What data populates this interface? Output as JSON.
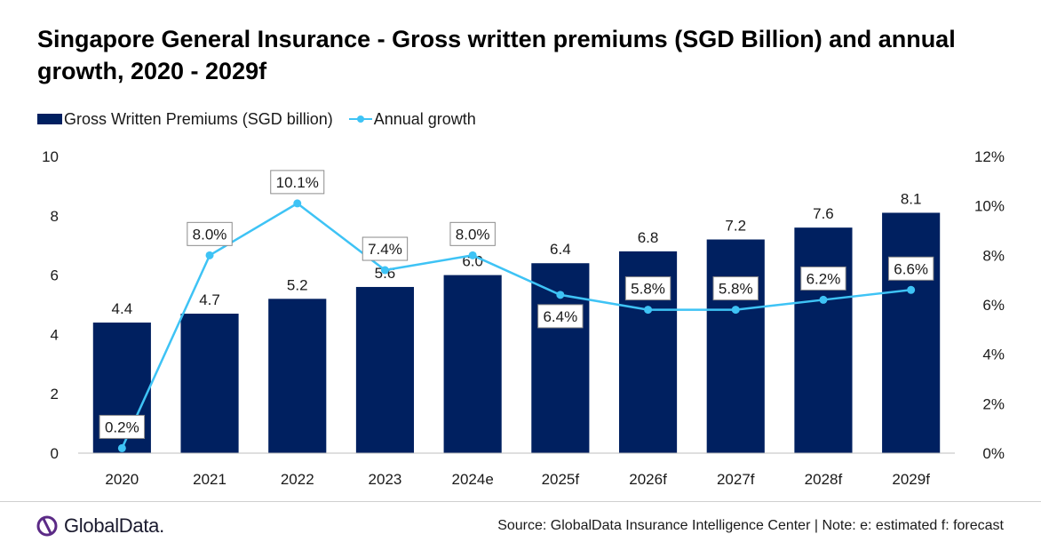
{
  "title": "Singapore General Insurance - Gross written premiums (SGD Billion) and annual growth, 2020 - 2029f",
  "legend": {
    "bar_label": "Gross Written Premiums (SGD billion)",
    "line_label": "Annual growth"
  },
  "footer": {
    "logo_text": "GlobalData.",
    "source": "Source: GlobalData Insurance Intelligence Center | Note: e: estimated f: forecast"
  },
  "colors": {
    "bar": "#002060",
    "line": "#3ec3f5"
  },
  "chart_data": {
    "type": "bar+line",
    "categories": [
      "2020",
      "2021",
      "2022",
      "2023",
      "2024e",
      "2025f",
      "2026f",
      "2027f",
      "2028f",
      "2029f"
    ],
    "series": [
      {
        "name": "Gross Written Premiums (SGD billion)",
        "type": "bar",
        "axis": "left",
        "values": [
          4.4,
          4.7,
          5.2,
          5.6,
          6.0,
          6.4,
          6.8,
          7.2,
          7.6,
          8.1
        ],
        "labels": [
          "4.4",
          "4.7",
          "5.2",
          "5.6",
          "6.0",
          "6.4",
          "6.8",
          "7.2",
          "7.6",
          "8.1"
        ]
      },
      {
        "name": "Annual growth",
        "type": "line",
        "axis": "right",
        "values": [
          0.2,
          8.0,
          10.1,
          7.4,
          8.0,
          6.4,
          5.8,
          5.8,
          6.2,
          6.6
        ],
        "labels": [
          "0.2%",
          "8.0%",
          "10.1%",
          "7.4%",
          "8.0%",
          "6.4%",
          "5.8%",
          "5.8%",
          "6.2%",
          "6.6%"
        ]
      }
    ],
    "y_left": {
      "min": 0,
      "max": 10,
      "ticks": [
        "0",
        "2",
        "4",
        "6",
        "8",
        "10"
      ]
    },
    "y_right": {
      "min": 0,
      "max": 12,
      "ticks": [
        "0%",
        "2%",
        "4%",
        "6%",
        "8%",
        "10%",
        "12%"
      ]
    },
    "grid": false,
    "legend_position": "top-left"
  }
}
